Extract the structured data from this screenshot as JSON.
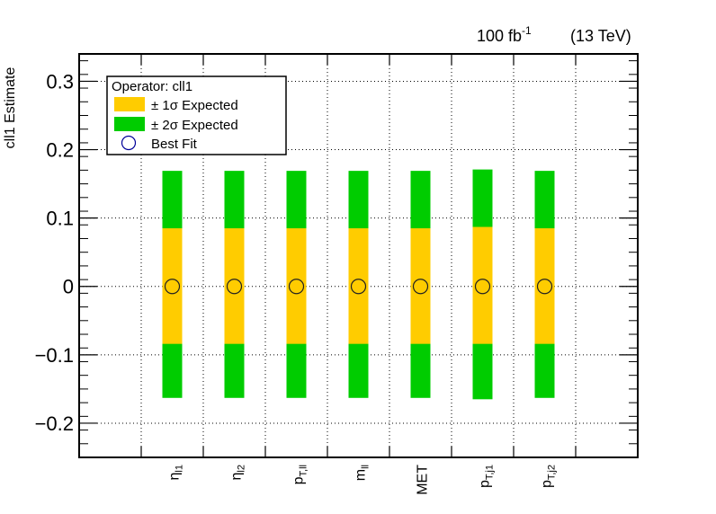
{
  "chart_data": {
    "type": "bar",
    "ylabel": "cll1 Estimate",
    "ylim": [
      -0.25,
      0.34
    ],
    "yticks": [
      -0.2,
      -0.1,
      0,
      0.1,
      0.2,
      0.3
    ],
    "ytick_labels": [
      "−0.2",
      "−0.1",
      "0",
      "0.1",
      "0.2",
      "0.3"
    ],
    "categories": [
      {
        "base": "η",
        "sub": "l1"
      },
      {
        "base": "η",
        "sub": "l2"
      },
      {
        "base": "p",
        "sub": "T,ll"
      },
      {
        "base": "m",
        "sub": "ll"
      },
      {
        "base": "MET",
        "sub": ""
      },
      {
        "base": "p",
        "sub": "T,j1"
      },
      {
        "base": "p",
        "sub": "T,j2"
      }
    ],
    "best_fit": [
      0,
      0,
      0,
      0,
      0,
      0,
      0
    ],
    "one_sigma": [
      [
        -0.084,
        0.085
      ],
      [
        -0.084,
        0.085
      ],
      [
        -0.084,
        0.085
      ],
      [
        -0.084,
        0.085
      ],
      [
        -0.084,
        0.085
      ],
      [
        -0.084,
        0.087
      ],
      [
        -0.084,
        0.085
      ]
    ],
    "two_sigma": [
      [
        -0.163,
        0.169
      ],
      [
        -0.163,
        0.169
      ],
      [
        -0.163,
        0.169
      ],
      [
        -0.163,
        0.169
      ],
      [
        -0.163,
        0.169
      ],
      [
        -0.165,
        0.171
      ],
      [
        -0.163,
        0.169
      ]
    ],
    "grid": true,
    "legend": {
      "position": "top-left",
      "title": "Operator: cll1",
      "entries": [
        {
          "label": "± 1σ Expected",
          "color": "#ffcc00"
        },
        {
          "label": "± 2σ Expected",
          "color": "#00cc00"
        },
        {
          "label": "Best Fit",
          "color": "#000099"
        }
      ]
    },
    "annotations": {
      "lumi": "100 fb",
      "lumi_sup": "-1",
      "energy": "(13 TeV)"
    },
    "colors": {
      "one_sigma": "#ffcc00",
      "two_sigma": "#00cc00",
      "marker": "#000099"
    }
  }
}
